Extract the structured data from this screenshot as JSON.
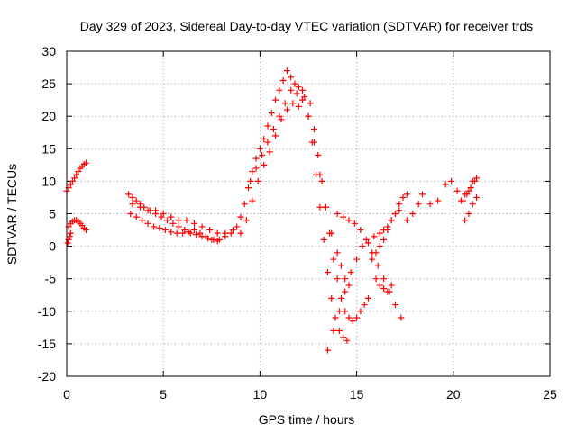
{
  "chart_data": {
    "type": "scatter",
    "title": "Day 329 of 2023, Sidereal Day-to-day VTEC variation (SDTVAR) for receiver trds",
    "xlabel": "GPS time / hours",
    "ylabel": "SDTVAR / TECUs",
    "xlim": [
      0,
      25
    ],
    "ylim": [
      -20,
      30
    ],
    "xticks": [
      0,
      5,
      10,
      15,
      20,
      25
    ],
    "yticks": [
      -20,
      -15,
      -10,
      -5,
      0,
      5,
      10,
      15,
      20,
      25,
      30
    ],
    "grid": true,
    "marker": "+",
    "marker_color": "#ff0000",
    "series": [
      {
        "name": "trds SDTVAR",
        "x": [
          0.0,
          0.1,
          0.2,
          0.3,
          0.4,
          0.5,
          0.6,
          0.7,
          0.8,
          0.9,
          1.0,
          0.1,
          0.2,
          0.3,
          0.4,
          0.5,
          0.6,
          0.7,
          0.8,
          0.9,
          1.0,
          0.05,
          0.1,
          0.15,
          0.2,
          3.2,
          3.4,
          3.6,
          3.8,
          4.0,
          4.3,
          4.6,
          4.9,
          5.2,
          5.5,
          5.8,
          6.1,
          6.4,
          6.7,
          7.0,
          7.3,
          7.6,
          7.9,
          8.2,
          8.5,
          3.3,
          3.6,
          3.9,
          4.2,
          4.5,
          4.8,
          5.1,
          5.4,
          5.7,
          6.0,
          6.3,
          6.6,
          6.9,
          7.2,
          7.5,
          7.8,
          3.4,
          3.8,
          4.2,
          4.6,
          5.0,
          5.4,
          5.8,
          6.2,
          6.6,
          7.0,
          7.4,
          7.8,
          8.2,
          8.6,
          8.8,
          9.0,
          9.2,
          9.4,
          9.6,
          9.8,
          10.0,
          10.2,
          10.4,
          10.6,
          10.8,
          11.0,
          11.2,
          11.4,
          11.6,
          11.8,
          12.0,
          12.2,
          9.0,
          9.3,
          9.6,
          9.9,
          10.2,
          10.5,
          10.8,
          11.1,
          11.4,
          11.7,
          12.0,
          9.5,
          9.8,
          10.1,
          10.4,
          10.7,
          11.0,
          11.3,
          11.6,
          11.9,
          12.2,
          12.5,
          12.8,
          13.1,
          13.4,
          13.7,
          14.0,
          14.2,
          14.4,
          14.6,
          12.3,
          12.5,
          12.7,
          12.9,
          13.1,
          13.3,
          13.5,
          13.7,
          13.9,
          14.1,
          14.3,
          14.5,
          12.6,
          12.8,
          13.0,
          13.2,
          13.4,
          13.6,
          13.8,
          14.0,
          14.2,
          14.4,
          14.6,
          14.8,
          15.0,
          15.2,
          15.4,
          15.6,
          13.5,
          13.8,
          14.1,
          14.4,
          14.7,
          15.0,
          15.3,
          15.6,
          15.9,
          16.2,
          16.4,
          16.6,
          16.8,
          17.0,
          17.2,
          17.4,
          17.6,
          16.0,
          16.2,
          16.4,
          16.6,
          16.8,
          15.8,
          16.0,
          16.2,
          16.4,
          16.6,
          16.8,
          17.0,
          17.2,
          14.0,
          14.3,
          14.6,
          14.9,
          15.2,
          15.5,
          15.8,
          16.1,
          16.4,
          16.7,
          17.0,
          17.3,
          17.6,
          17.9,
          18.2,
          18.4,
          18.8,
          19.2,
          19.6,
          19.9,
          20.2,
          20.4,
          20.6,
          20.8,
          21.0,
          21.2,
          20.5,
          20.7,
          20.9,
          21.1,
          20.6,
          20.8,
          21.0,
          21.2
        ],
        "y": [
          8.5,
          9.0,
          9.5,
          10.0,
          10.5,
          11.0,
          11.5,
          12.0,
          12.3,
          12.6,
          12.8,
          3.0,
          3.5,
          3.8,
          4.0,
          4.0,
          3.8,
          3.5,
          3.2,
          2.8,
          2.5,
          0.5,
          1.0,
          1.5,
          2.0,
          8.0,
          7.5,
          7.0,
          6.5,
          6.0,
          5.5,
          5.0,
          4.5,
          4.0,
          3.5,
          3.0,
          2.5,
          2.0,
          1.8,
          1.5,
          1.2,
          1.0,
          1.0,
          1.5,
          2.0,
          5.0,
          4.5,
          4.0,
          3.5,
          3.0,
          2.8,
          2.5,
          2.2,
          2.0,
          2.0,
          2.2,
          2.5,
          2.0,
          1.5,
          1.0,
          0.8,
          6.5,
          6.0,
          5.5,
          5.5,
          5.0,
          4.5,
          4.0,
          4.0,
          3.5,
          3.0,
          2.5,
          2.0,
          2.0,
          2.5,
          3.0,
          4.5,
          6.5,
          9.0,
          11.5,
          13.5,
          15.0,
          16.5,
          18.5,
          20.5,
          22.5,
          24.0,
          25.5,
          27.0,
          26.0,
          25.0,
          24.5,
          24.0,
          2.0,
          4.0,
          7.0,
          10.0,
          12.5,
          14.5,
          17.0,
          19.5,
          21.0,
          22.0,
          21.5,
          10.0,
          12.0,
          14.0,
          16.0,
          18.0,
          20.0,
          22.0,
          24.0,
          23.5,
          22.5,
          20.0,
          16.0,
          11.0,
          6.0,
          2.0,
          -1.0,
          -3.0,
          -5.0,
          -6.0,
          23.0,
          20.0,
          16.0,
          11.0,
          6.0,
          1.0,
          -4.0,
          -8.0,
          -11.0,
          -13.0,
          -14.0,
          -14.5,
          22.0,
          18.0,
          14.0,
          10.0,
          6.0,
          2.0,
          -2.0,
          -5.0,
          -8.0,
          -10.0,
          -11.0,
          -11.5,
          -11.0,
          -10.0,
          -9.0,
          -8.0,
          -16.0,
          -13.0,
          -10.0,
          -7.0,
          -4.0,
          -2.0,
          0.0,
          0.5,
          1.5,
          2.0,
          2.5,
          3.0,
          4.0,
          5.0,
          6.5,
          7.5,
          8.0,
          -5.0,
          -6.0,
          -6.5,
          -7.0,
          -6.0,
          -2.0,
          -1.0,
          0.0,
          1.0,
          2.5,
          4.0,
          5.0,
          5.5,
          5.0,
          4.5,
          4.0,
          3.5,
          2.5,
          1.0,
          -1.0,
          -3.0,
          -5.0,
          -7.0,
          -9.0,
          -11.0,
          4.0,
          5.0,
          6.5,
          8.0,
          6.5,
          7.0,
          9.5,
          10.0,
          8.5,
          7.0,
          8.0,
          8.5,
          10.0,
          10.5,
          7.0,
          8.0,
          9.0,
          10.0,
          4.0,
          5.0,
          6.5,
          7.5
        ]
      }
    ]
  }
}
